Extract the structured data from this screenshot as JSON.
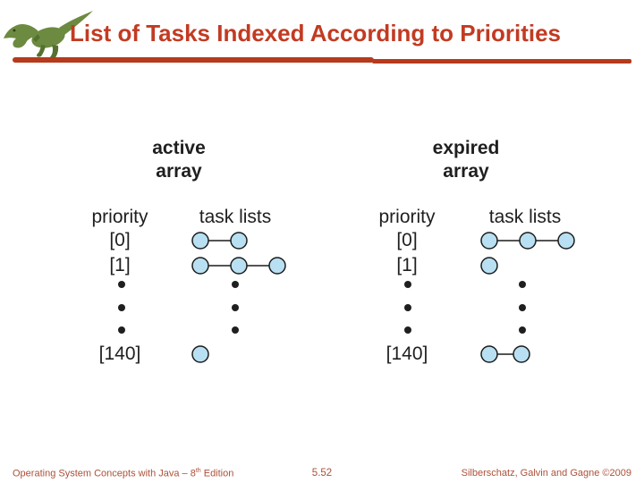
{
  "title": "List of Tasks Indexed According to Priorities",
  "logo_icon": "dinosaur",
  "colors": {
    "accent": "#C23B22",
    "rule": "#B63A1C",
    "figure_text": "#1F1F1F",
    "node_fill": "#B8E0F2",
    "node_stroke": "#1C1C1C",
    "footer_text": "#AD5038"
  },
  "diagram": {
    "panels": [
      {
        "name": "active array",
        "title_line1": "active",
        "title_line2": "array",
        "col1_header": "priority",
        "col2_header": "task lists",
        "rows": [
          {
            "label": "[0]",
            "nodes": 2
          },
          {
            "label": "[1]",
            "nodes": 3
          },
          {
            "dots": true
          },
          {
            "label": "[140]",
            "nodes": 1
          }
        ]
      },
      {
        "name": "expired array",
        "title_line1": "expired",
        "title_line2": "array",
        "col1_header": "priority",
        "col2_header": "task lists",
        "rows": [
          {
            "label": "[0]",
            "nodes": 3
          },
          {
            "label": "[1]",
            "nodes": 1
          },
          {
            "dots": true
          },
          {
            "label": "[140]",
            "nodes": 2
          }
        ]
      }
    ]
  },
  "footer": {
    "left_prefix": "Operating System Concepts with Java – 8",
    "left_sup": "th",
    "left_suffix": " Edition",
    "page": "5.52",
    "right": "Silberschatz, Galvin and Gagne ©2009"
  }
}
